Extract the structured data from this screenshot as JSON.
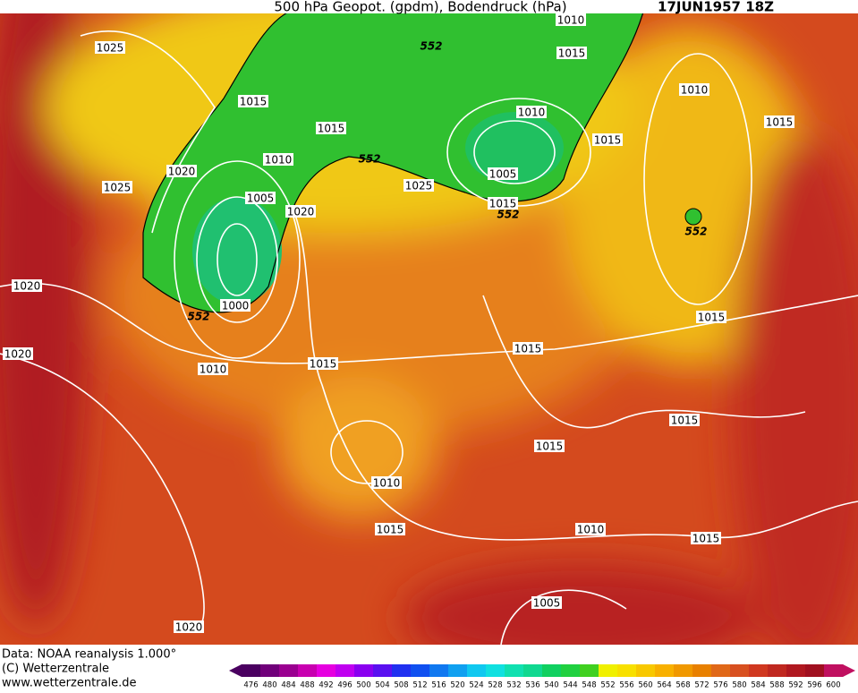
{
  "header": {
    "title": "500 hPa Geopot. (gpdm), Bodendruck (hPa)",
    "date": "17JUN1957 18Z"
  },
  "isobar_labels": [
    "1025",
    "1015",
    "1015",
    "1010",
    "1020",
    "1025",
    "1005",
    "1020",
    "1025",
    "1000",
    "1020",
    "1020",
    "1010",
    "1015",
    "1015",
    "1010",
    "1015",
    "1015",
    "1010",
    "1015",
    "1005",
    "1020",
    "1015",
    "1015",
    "1010",
    "1015",
    "1015",
    "1010",
    "1005",
    "1015",
    "1010",
    "1015"
  ],
  "geopotential_labels": [
    "552",
    "552",
    "552",
    "552",
    "552"
  ],
  "footer": [
    "Data: NOAA reanalysis 1.000°",
    "(C) Wetterzentrale",
    "www.wetterzentrale.de"
  ],
  "colorbar": {
    "labels": [
      476,
      480,
      484,
      488,
      492,
      496,
      500,
      504,
      508,
      512,
      516,
      520,
      524,
      528,
      532,
      536,
      540,
      544,
      548,
      552,
      556,
      560,
      564,
      568,
      572,
      576,
      580,
      584,
      588,
      592,
      596,
      600
    ],
    "colors": [
      "#4a0060",
      "#70007a",
      "#9a0090",
      "#c800b0",
      "#e600e0",
      "#c000f0",
      "#8a00f0",
      "#5a10f0",
      "#2030f0",
      "#1050f0",
      "#1078f0",
      "#10a0f0",
      "#10c8f0",
      "#10e0e0",
      "#10e0b0",
      "#10d890",
      "#10d060",
      "#20d040",
      "#40d020",
      "#f0f000",
      "#f8e000",
      "#f8c800",
      "#f8b000",
      "#f09800",
      "#e88000",
      "#e06818",
      "#d85020",
      "#d03820",
      "#c02820",
      "#b01820",
      "#a01020",
      "#c01060"
    ]
  }
}
